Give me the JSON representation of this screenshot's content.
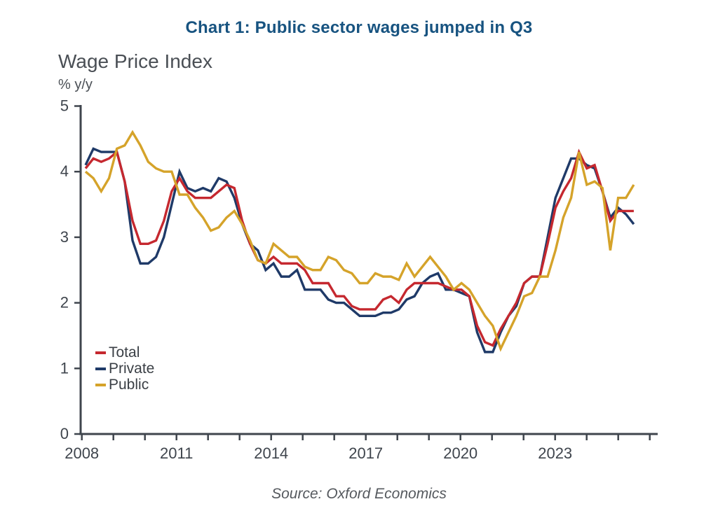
{
  "title": "Chart 1: Public sector wages jumped in Q3",
  "subtitle": "Wage Price Index",
  "unit_label": "% y/y",
  "source": "Source: Oxford Economics",
  "chart_data": {
    "type": "line",
    "title": "Wage Price Index",
    "ylabel": "% y/y",
    "ylim": [
      0,
      5
    ],
    "y_ticks": [
      0,
      1,
      2,
      3,
      4,
      5
    ],
    "grid": "off",
    "legend_position": "lower-left",
    "x_axis": {
      "tick_years": [
        2008,
        2009,
        2010,
        2011,
        2012,
        2013,
        2014,
        2015,
        2016,
        2017,
        2018,
        2019,
        2020,
        2021,
        2022,
        2023,
        2024,
        2025,
        2026
      ],
      "labeled_years": [
        2008,
        2011,
        2014,
        2017,
        2020,
        2023
      ]
    },
    "x": [
      "2008Q1",
      "2008Q2",
      "2008Q3",
      "2008Q4",
      "2009Q1",
      "2009Q2",
      "2009Q3",
      "2009Q4",
      "2010Q1",
      "2010Q2",
      "2010Q3",
      "2010Q4",
      "2011Q1",
      "2011Q2",
      "2011Q3",
      "2011Q4",
      "2012Q1",
      "2012Q2",
      "2012Q3",
      "2012Q4",
      "2013Q1",
      "2013Q2",
      "2013Q3",
      "2013Q4",
      "2014Q1",
      "2014Q2",
      "2014Q3",
      "2014Q4",
      "2015Q1",
      "2015Q2",
      "2015Q3",
      "2015Q4",
      "2016Q1",
      "2016Q2",
      "2016Q3",
      "2016Q4",
      "2017Q1",
      "2017Q2",
      "2017Q3",
      "2017Q4",
      "2018Q1",
      "2018Q2",
      "2018Q3",
      "2018Q4",
      "2019Q1",
      "2019Q2",
      "2019Q3",
      "2019Q4",
      "2020Q1",
      "2020Q2",
      "2020Q3",
      "2020Q4",
      "2021Q1",
      "2021Q2",
      "2021Q3",
      "2021Q4",
      "2022Q1",
      "2022Q2",
      "2022Q3",
      "2022Q4",
      "2023Q1",
      "2023Q2",
      "2023Q3",
      "2023Q4",
      "2024Q1",
      "2024Q2",
      "2024Q3",
      "2024Q4",
      "2025Q1",
      "2025Q2",
      "2025Q3"
    ],
    "series": [
      {
        "name": "Total",
        "color": "#C5282F",
        "values": [
          4.05,
          4.2,
          4.15,
          4.2,
          4.3,
          3.85,
          3.25,
          2.9,
          2.9,
          2.95,
          3.25,
          3.7,
          3.9,
          3.7,
          3.6,
          3.6,
          3.6,
          3.7,
          3.8,
          3.75,
          3.25,
          2.9,
          2.65,
          2.6,
          2.7,
          2.6,
          2.6,
          2.6,
          2.5,
          2.3,
          2.3,
          2.3,
          2.1,
          2.1,
          1.95,
          1.9,
          1.9,
          1.9,
          2.05,
          2.1,
          2.0,
          2.2,
          2.3,
          2.3,
          2.3,
          2.3,
          2.25,
          2.2,
          2.2,
          2.1,
          1.65,
          1.4,
          1.35,
          1.6,
          1.8,
          2.0,
          2.3,
          2.4,
          2.4,
          2.9,
          3.45,
          3.7,
          3.9,
          4.3,
          4.05,
          4.1,
          3.7,
          3.25,
          3.4,
          3.4,
          3.4
        ]
      },
      {
        "name": "Private",
        "color": "#1F3A68",
        "values": [
          4.1,
          4.35,
          4.3,
          4.3,
          4.3,
          3.85,
          2.95,
          2.6,
          2.6,
          2.7,
          3.0,
          3.5,
          4.0,
          3.75,
          3.7,
          3.75,
          3.7,
          3.9,
          3.85,
          3.6,
          3.2,
          2.9,
          2.8,
          2.5,
          2.6,
          2.4,
          2.4,
          2.5,
          2.2,
          2.2,
          2.2,
          2.05,
          2.0,
          2.0,
          1.9,
          1.8,
          1.8,
          1.8,
          1.85,
          1.85,
          1.9,
          2.05,
          2.1,
          2.3,
          2.4,
          2.45,
          2.2,
          2.2,
          2.15,
          2.1,
          1.55,
          1.25,
          1.25,
          1.55,
          1.8,
          1.95,
          2.3,
          2.4,
          2.4,
          3.0,
          3.6,
          3.9,
          4.2,
          4.2,
          4.1,
          4.05,
          3.7,
          3.3,
          3.45,
          3.35,
          3.2
        ]
      },
      {
        "name": "Public",
        "color": "#D5A32A",
        "values": [
          4.0,
          3.9,
          3.7,
          3.9,
          4.35,
          4.4,
          4.6,
          4.4,
          4.15,
          4.05,
          4.0,
          4.0,
          3.65,
          3.65,
          3.45,
          3.3,
          3.1,
          3.15,
          3.3,
          3.4,
          3.2,
          2.95,
          2.65,
          2.6,
          2.9,
          2.8,
          2.7,
          2.7,
          2.55,
          2.5,
          2.5,
          2.7,
          2.65,
          2.5,
          2.45,
          2.3,
          2.3,
          2.45,
          2.4,
          2.4,
          2.35,
          2.6,
          2.4,
          2.55,
          2.7,
          2.55,
          2.4,
          2.2,
          2.3,
          2.2,
          2.0,
          1.8,
          1.65,
          1.3,
          1.55,
          1.8,
          2.1,
          2.15,
          2.4,
          2.4,
          2.8,
          3.3,
          3.6,
          4.3,
          3.8,
          3.85,
          3.75,
          2.8,
          3.6,
          3.6,
          3.8
        ]
      }
    ]
  }
}
